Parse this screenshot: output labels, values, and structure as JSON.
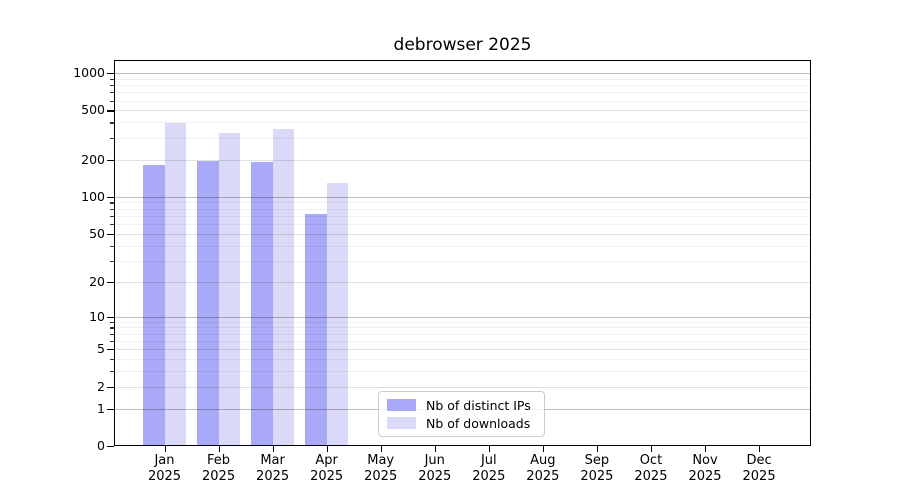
{
  "chart_data": {
    "type": "bar",
    "title": "debrowser 2025",
    "categories": [
      "Jan",
      "Feb",
      "Mar",
      "Apr",
      "May",
      "Jun",
      "Jul",
      "Aug",
      "Sep",
      "Oct",
      "Nov",
      "Dec"
    ],
    "year_label": "2025",
    "series": [
      {
        "name": "Nb of distinct IPs",
        "color": "#a9a9f7",
        "values": [
          180,
          195,
          190,
          73,
          0,
          0,
          0,
          0,
          0,
          0,
          0,
          0
        ]
      },
      {
        "name": "Nb of downloads",
        "color": "#dadaf8",
        "values": [
          395,
          330,
          355,
          130,
          0,
          0,
          0,
          0,
          0,
          0,
          0,
          0
        ]
      }
    ],
    "yticks": [
      0,
      1,
      2,
      5,
      10,
      20,
      50,
      100,
      200,
      500,
      1000
    ],
    "scale": "log1p",
    "ylim": [
      0,
      1274
    ],
    "grid": true,
    "legend_position": "lower center"
  }
}
